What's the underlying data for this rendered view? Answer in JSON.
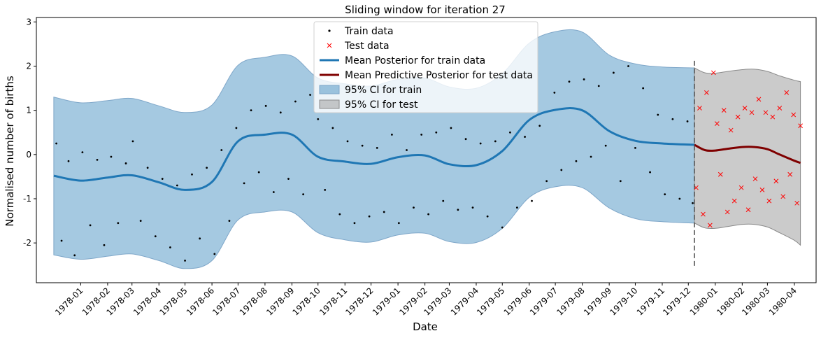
{
  "chart_data": {
    "type": "line",
    "title": "Sliding window for iteration 27",
    "xlabel": "Date",
    "ylabel": "Normalised number of births",
    "x_range": [
      "1977-11-11",
      "1980-04-26"
    ],
    "ylim": [
      -2.9,
      3.1
    ],
    "y_ticks": [
      -2,
      -1,
      0,
      1,
      2,
      3
    ],
    "x_ticks": [
      "1978-01",
      "1978-02",
      "1978-03",
      "1978-04",
      "1978-05",
      "1978-06",
      "1978-07",
      "1978-08",
      "1978-09",
      "1978-10",
      "1978-11",
      "1978-12",
      "1979-01",
      "1979-02",
      "1979-03",
      "1979-04",
      "1979-05",
      "1979-06",
      "1979-07",
      "1979-08",
      "1979-09",
      "1979-10",
      "1979-11",
      "1979-12",
      "1980-01",
      "1980-02",
      "1980-03",
      "1980-04"
    ],
    "grid": false,
    "legend_position": "upper center",
    "split_date": "1979-12-08",
    "series": [
      {
        "name": "Mean Posterior for train data",
        "kind": "mean",
        "color": "#1f77b4",
        "x": [
          "1977-12-01",
          "1978-01-01",
          "1978-02-01",
          "1978-03-01",
          "1978-04-01",
          "1978-05-01",
          "1978-06-01",
          "1978-07-01",
          "1978-08-01",
          "1978-09-01",
          "1978-10-01",
          "1978-11-01",
          "1978-12-01",
          "1979-01-01",
          "1979-02-01",
          "1979-03-01",
          "1979-04-01",
          "1979-05-01",
          "1979-06-01",
          "1979-07-01",
          "1979-08-01",
          "1979-09-01",
          "1979-10-01",
          "1979-11-01",
          "1979-12-08"
        ],
        "y": [
          -0.48,
          -0.59,
          -0.52,
          -0.47,
          -0.63,
          -0.8,
          -0.62,
          0.3,
          0.45,
          0.45,
          -0.05,
          -0.16,
          -0.21,
          -0.06,
          -0.02,
          -0.22,
          -0.24,
          0.08,
          0.78,
          1.01,
          1.0,
          0.53,
          0.31,
          0.25,
          0.22
        ]
      },
      {
        "name": "Mean Predictive Posterior for test data",
        "kind": "mean",
        "color": "#7f0000",
        "x": [
          "1979-12-08",
          "1979-12-20",
          "1980-01-01",
          "1980-01-15",
          "1980-02-01",
          "1980-02-15",
          "1980-03-01",
          "1980-03-15",
          "1980-04-01",
          "1980-04-08"
        ],
        "y": [
          0.22,
          0.1,
          0.09,
          0.13,
          0.17,
          0.17,
          0.12,
          0.0,
          -0.14,
          -0.19
        ]
      },
      {
        "name": "95% CI for train",
        "kind": "band",
        "color": "#1f77b4",
        "x": [
          "1977-12-01",
          "1978-01-01",
          "1978-02-01",
          "1978-03-01",
          "1978-04-01",
          "1978-05-01",
          "1978-06-01",
          "1978-07-01",
          "1978-08-01",
          "1978-09-01",
          "1978-10-01",
          "1978-11-01",
          "1978-12-01",
          "1979-01-01",
          "1979-02-01",
          "1979-03-01",
          "1979-04-01",
          "1979-05-01",
          "1979-06-01",
          "1979-07-01",
          "1979-08-01",
          "1979-09-01",
          "1979-10-01",
          "1979-11-01",
          "1979-12-08"
        ],
        "upper": [
          1.3,
          1.17,
          1.22,
          1.27,
          1.1,
          0.95,
          1.12,
          2.02,
          2.2,
          2.23,
          1.73,
          1.6,
          1.55,
          1.7,
          1.73,
          1.53,
          1.5,
          1.83,
          2.52,
          2.78,
          2.77,
          2.25,
          2.05,
          1.98,
          1.96
        ],
        "lower": [
          -2.27,
          -2.37,
          -2.3,
          -2.25,
          -2.4,
          -2.58,
          -2.4,
          -1.48,
          -1.3,
          -1.3,
          -1.77,
          -1.93,
          -1.98,
          -1.82,
          -1.78,
          -1.97,
          -1.99,
          -1.67,
          -0.97,
          -0.73,
          -0.75,
          -1.21,
          -1.45,
          -1.52,
          -1.55
        ]
      },
      {
        "name": "95% CI for test",
        "kind": "band",
        "color": "#a0a0a0",
        "x": [
          "1979-12-08",
          "1979-12-20",
          "1980-01-01",
          "1980-01-15",
          "1980-02-01",
          "1980-02-15",
          "1980-03-01",
          "1980-03-15",
          "1980-04-01",
          "1980-04-08"
        ],
        "upper": [
          1.96,
          1.85,
          1.84,
          1.88,
          1.92,
          1.93,
          1.88,
          1.78,
          1.68,
          1.65
        ],
        "lower": [
          -1.55,
          -1.66,
          -1.67,
          -1.63,
          -1.58,
          -1.58,
          -1.64,
          -1.77,
          -1.94,
          -2.05
        ]
      },
      {
        "name": "Train data",
        "kind": "points",
        "color": "#000000",
        "x": [
          "1977-12-04",
          "1977-12-10",
          "1977-12-18",
          "1977-12-25",
          "1978-01-03",
          "1978-01-12",
          "1978-01-20",
          "1978-01-28",
          "1978-02-05",
          "1978-02-13",
          "1978-02-22",
          "1978-03-02",
          "1978-03-11",
          "1978-03-19",
          "1978-03-28",
          "1978-04-05",
          "1978-04-14",
          "1978-04-22",
          "1978-05-01",
          "1978-05-09",
          "1978-05-18",
          "1978-05-26",
          "1978-06-04",
          "1978-06-12",
          "1978-06-21",
          "1978-06-29",
          "1978-07-08",
          "1978-07-16",
          "1978-07-25",
          "1978-08-02",
          "1978-08-11",
          "1978-08-19",
          "1978-08-28",
          "1978-09-05",
          "1978-09-14",
          "1978-09-22",
          "1978-10-01",
          "1978-10-09",
          "1978-10-18",
          "1978-10-26",
          "1978-11-04",
          "1978-11-12",
          "1978-11-21",
          "1978-11-29",
          "1978-12-08",
          "1978-12-16",
          "1978-12-25",
          "1979-01-02",
          "1979-01-11",
          "1979-01-19",
          "1979-01-28",
          "1979-02-05",
          "1979-02-14",
          "1979-02-22",
          "1979-03-03",
          "1979-03-11",
          "1979-03-20",
          "1979-03-28",
          "1979-04-06",
          "1979-04-14",
          "1979-04-23",
          "1979-05-01",
          "1979-05-10",
          "1979-05-18",
          "1979-05-27",
          "1979-06-04",
          "1979-06-13",
          "1979-06-21",
          "1979-06-30",
          "1979-07-08",
          "1979-07-17",
          "1979-07-25",
          "1979-08-03",
          "1979-08-11",
          "1979-08-20",
          "1979-08-28",
          "1979-09-06",
          "1979-09-14",
          "1979-09-23",
          "1979-10-01",
          "1979-10-10",
          "1979-10-18",
          "1979-10-27",
          "1979-11-04",
          "1979-11-13",
          "1979-11-21",
          "1979-11-30",
          "1979-12-06"
        ],
        "y": [
          0.25,
          -1.95,
          -0.15,
          -2.28,
          0.05,
          -1.6,
          -0.12,
          -2.05,
          -0.05,
          -1.55,
          -0.2,
          0.3,
          -1.5,
          -0.3,
          -1.85,
          -0.55,
          -2.1,
          -0.7,
          -2.4,
          -0.45,
          -1.9,
          -0.3,
          -2.25,
          0.1,
          -1.5,
          0.6,
          -0.65,
          1.0,
          -0.4,
          1.1,
          -0.85,
          0.95,
          -0.55,
          1.2,
          -0.9,
          1.35,
          0.8,
          -0.8,
          0.6,
          -1.35,
          0.3,
          -1.55,
          0.2,
          -1.4,
          0.15,
          -1.3,
          0.45,
          -1.55,
          0.1,
          -1.2,
          0.45,
          -1.35,
          0.5,
          -1.05,
          0.6,
          -1.25,
          0.35,
          -1.2,
          0.25,
          -1.4,
          0.3,
          -1.65,
          0.5,
          -1.2,
          0.4,
          -1.05,
          0.65,
          -0.6,
          1.4,
          -0.35,
          1.65,
          -0.15,
          1.7,
          -0.05,
          1.55,
          0.2,
          1.85,
          -0.6,
          2.0,
          0.15,
          1.5,
          -0.4,
          0.9,
          -0.9,
          0.8,
          -1.0,
          0.75,
          -1.1
        ]
      },
      {
        "name": "Test data",
        "kind": "points",
        "color": "#ff0000",
        "x": [
          "1979-12-10",
          "1979-12-14",
          "1979-12-18",
          "1979-12-22",
          "1979-12-26",
          "1979-12-30",
          "1980-01-03",
          "1980-01-07",
          "1980-01-11",
          "1980-01-15",
          "1980-01-19",
          "1980-01-23",
          "1980-01-27",
          "1980-01-31",
          "1980-02-04",
          "1980-02-08",
          "1980-02-12",
          "1980-02-16",
          "1980-02-20",
          "1980-02-24",
          "1980-02-28",
          "1980-03-03",
          "1980-03-07",
          "1980-03-11",
          "1980-03-15",
          "1980-03-19",
          "1980-03-23",
          "1980-03-27",
          "1980-03-31",
          "1980-04-04",
          "1980-04-08"
        ],
        "y": [
          -0.75,
          1.05,
          -1.35,
          1.4,
          -1.6,
          1.85,
          0.7,
          -0.45,
          1.0,
          -1.3,
          0.55,
          -1.05,
          0.85,
          -0.75,
          1.05,
          -1.25,
          0.95,
          -0.55,
          1.25,
          -0.8,
          0.95,
          -1.05,
          0.85,
          -0.6,
          1.05,
          -0.95,
          1.4,
          -0.45,
          0.9,
          -1.1,
          0.65
        ]
      }
    ]
  }
}
